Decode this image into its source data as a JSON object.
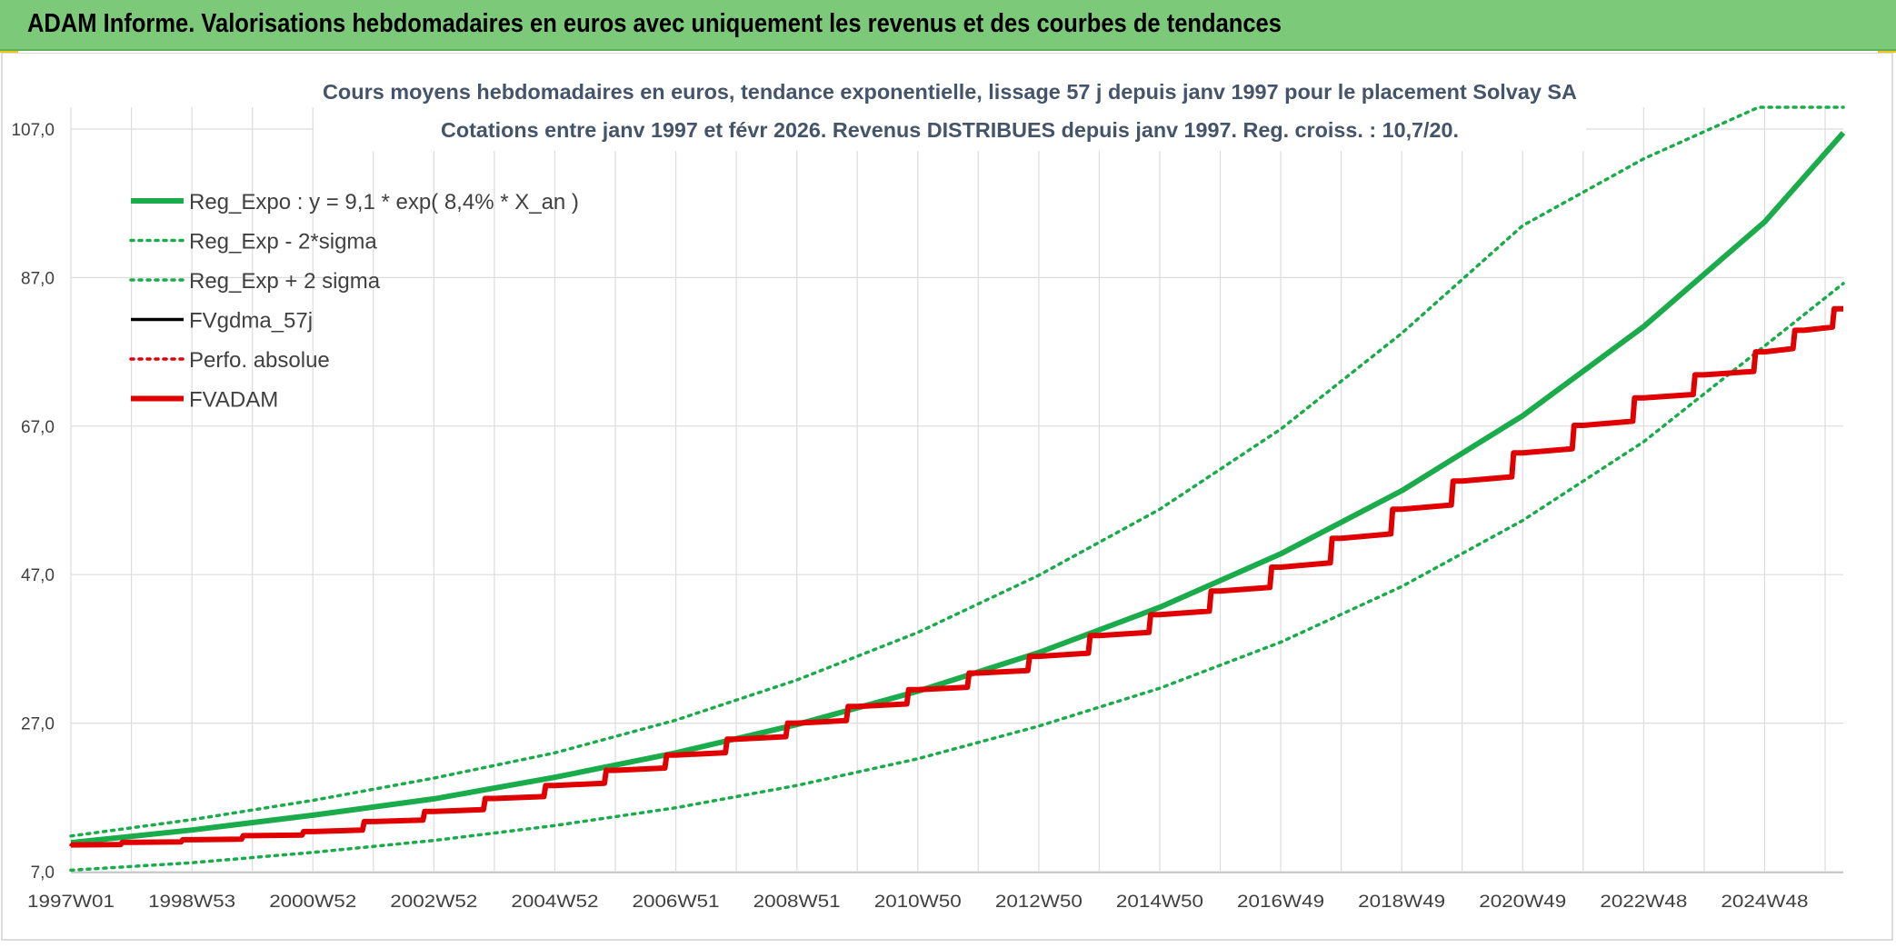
{
  "banner": {
    "title": "ADAM Informe. Valorisations hebdomadaires en euros avec uniquement les revenus et des courbes de tendances"
  },
  "colors": {
    "banner_bg": "#7dc97a",
    "reg_green": "#1aab4b",
    "fv_red": "#e00000",
    "fv_black": "#000000",
    "grid": "#d9d9d9",
    "corner_yellow": "#f0c419"
  },
  "chart_data": {
    "type": "line",
    "title": "Cours moyens hebdomadaires en euros, tendance exponentielle, lissage 57 j depuis janv 1997 pour le placement Solvay SA",
    "subtitle": "Cotations entre janv 1997 et févr 2026. Revenus DISTRIBUES depuis janv 1997. Reg. croiss. : 10,7/20.",
    "xlabel": "",
    "ylabel": "",
    "x_tick_labels": [
      "1997W01",
      "1998W53",
      "2000W52",
      "2002W52",
      "2004W52",
      "2006W51",
      "2008W51",
      "2010W50",
      "2012W50",
      "2014W50",
      "2016W49",
      "2018W49",
      "2020W49",
      "2022W48",
      "2024W48"
    ],
    "x_tick_years": [
      1997.0,
      1999.0,
      2001.0,
      2003.0,
      2005.0,
      2007.0,
      2009.0,
      2011.0,
      2013.0,
      2015.0,
      2017.0,
      2019.0,
      2021.0,
      2023.0,
      2025.0
    ],
    "xlim": [
      1997.0,
      2026.3
    ],
    "ylim": [
      7.0,
      110.0
    ],
    "y_ticks": [
      7.0,
      27.0,
      47.0,
      67.0,
      87.0,
      107.0
    ],
    "y_tick_labels": [
      "7,0",
      "27,0",
      "47,0",
      "67,0",
      "87,0",
      "107,0"
    ],
    "grid": true,
    "legend_position": "top-left",
    "series": [
      {
        "name": "Reg_Expo : y = 9,1 * exp( 8,4% *  X_an )",
        "style": "solid-thick",
        "color": "#1aab4b",
        "x": [
          1997,
          1999,
          2001,
          2003,
          2005,
          2007,
          2009,
          2011,
          2013,
          2015,
          2017,
          2019,
          2021,
          2023,
          2025,
          2026.3
        ],
        "values": [
          10.9,
          12.6,
          14.6,
          16.8,
          19.7,
          23.0,
          26.8,
          31.3,
          36.5,
          42.6,
          49.8,
          58.3,
          68.4,
          80.4,
          94.5,
          106.5
        ]
      },
      {
        "name": "Reg_Exp - 2*sigma",
        "style": "dotted",
        "color": "#1aab4b",
        "x": [
          1997,
          1999,
          2001,
          2003,
          2005,
          2007,
          2009,
          2011,
          2013,
          2015,
          2017,
          2019,
          2021,
          2023,
          2025,
          2026.3
        ],
        "values": [
          7.2,
          8.2,
          9.6,
          11.2,
          13.2,
          15.6,
          18.6,
          22.2,
          26.6,
          31.7,
          37.9,
          45.4,
          54.3,
          64.9,
          77.8,
          86.2
        ]
      },
      {
        "name": "Reg_Exp + 2 sigma",
        "style": "dotted",
        "color": "#1aab4b",
        "x": [
          1997,
          1999,
          2001,
          2003,
          2005,
          2007,
          2009,
          2011,
          2013,
          2015,
          2017,
          2019,
          2021,
          2023,
          2024.9,
          2026.3
        ],
        "values": [
          11.8,
          14.0,
          16.6,
          19.6,
          23.0,
          27.4,
          32.8,
          39.2,
          46.9,
          55.8,
          66.6,
          79.5,
          94.0,
          103.0,
          110.0,
          110.0
        ]
      },
      {
        "name": "FVgdma_57j",
        "style": "solid",
        "color": "#000000",
        "x": [
          1997,
          1999,
          2001,
          2003,
          2005,
          2007,
          2009,
          2011,
          2013,
          2015,
          2017,
          2019,
          2021,
          2023,
          2025,
          2026.3
        ],
        "values": [
          10.6,
          11.3,
          12.4,
          15.1,
          18.6,
          22.7,
          27.0,
          31.5,
          36.0,
          41.6,
          48.0,
          55.8,
          63.4,
          70.8,
          77.0,
          82.8
        ]
      },
      {
        "name": "Perfo. absolue",
        "style": "dotted",
        "color": "#e00000",
        "x": [
          1997,
          1999,
          2001,
          2003,
          2005,
          2007,
          2009,
          2011,
          2013,
          2015,
          2017,
          2019,
          2021,
          2023,
          2025,
          2026.3
        ],
        "values": [
          10.6,
          11.3,
          12.4,
          15.1,
          18.6,
          22.7,
          27.0,
          31.5,
          36.0,
          41.6,
          48.0,
          55.8,
          63.4,
          70.8,
          77.0,
          82.8
        ]
      },
      {
        "name": "FVADAM",
        "style": "solid-thick",
        "color": "#e00000",
        "x": [
          1997,
          1999,
          2001,
          2003,
          2005,
          2007,
          2009,
          2011,
          2013,
          2015,
          2017,
          2019,
          2021,
          2023,
          2025,
          2026.3
        ],
        "values": [
          10.6,
          11.3,
          12.4,
          15.1,
          18.6,
          22.7,
          27.0,
          31.5,
          36.0,
          41.6,
          48.0,
          55.8,
          63.4,
          70.8,
          77.0,
          82.8
        ]
      }
    ]
  }
}
